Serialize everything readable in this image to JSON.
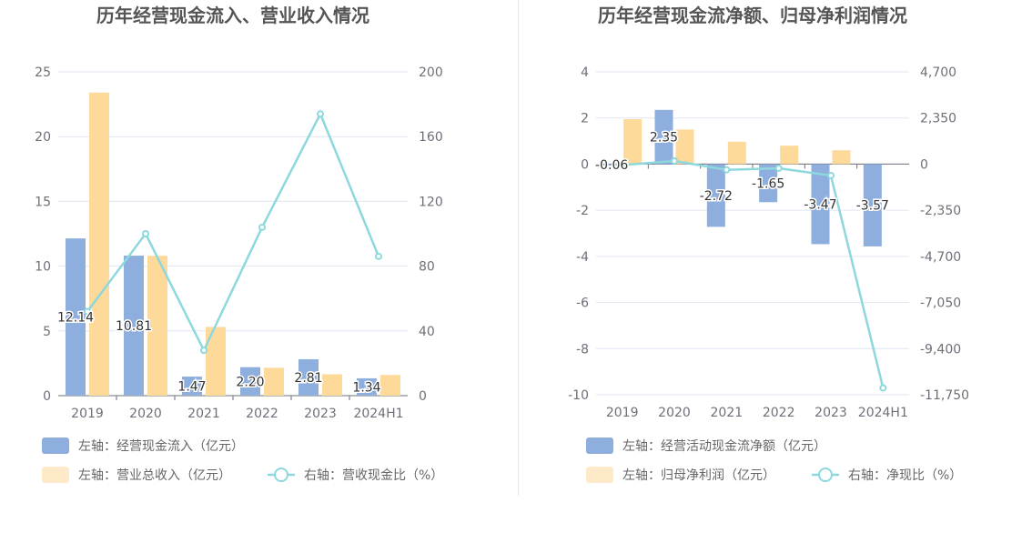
{
  "chart_data": [
    {
      "type": "bar",
      "title": "历年经营现金流入、营业收入情况",
      "categories": [
        "2019",
        "2020",
        "2021",
        "2022",
        "2023",
        "2024H1"
      ],
      "y_left": {
        "ylim": [
          0,
          25
        ],
        "ticks": [
          "0",
          "5",
          "10",
          "15",
          "20",
          "25"
        ]
      },
      "y_right": {
        "ylim": [
          0,
          200
        ],
        "ticks": [
          "0",
          "40",
          "80",
          "120",
          "160",
          "200"
        ]
      },
      "series": [
        {
          "name": "左轴：经营现金流入（亿元）",
          "type": "bar",
          "axis": "left",
          "color": "#8eaedd",
          "values": [
            12.14,
            10.81,
            1.47,
            2.2,
            2.81,
            1.34
          ],
          "labels": [
            "12.14",
            "10.81",
            "1.47",
            "2.20",
            "2.81",
            "1.34"
          ]
        },
        {
          "name": "左轴：营业总收入（亿元）",
          "type": "bar",
          "axis": "left",
          "color": "#fdd99a",
          "values": [
            23.4,
            10.8,
            5.3,
            2.15,
            1.65,
            1.6
          ]
        },
        {
          "name": "右轴：营收现金比（%）",
          "type": "line",
          "axis": "right",
          "color": "#8dd8dc",
          "values": [
            52,
            100,
            28,
            104,
            174,
            86
          ]
        }
      ],
      "grid": true,
      "legend_position": "bottom-left"
    },
    {
      "type": "bar",
      "title": "历年经营现金流净额、归母净利润情况",
      "categories": [
        "2019",
        "2020",
        "2021",
        "2022",
        "2023",
        "2024H1"
      ],
      "y_left": {
        "ylim": [
          -10,
          4
        ],
        "ticks": [
          "-10",
          "-8",
          "-6",
          "-4",
          "-2",
          "0",
          "2",
          "4"
        ]
      },
      "y_right": {
        "ylim": [
          -11750,
          4700
        ],
        "ticks": [
          "-11,750",
          "-9,400",
          "-7,050",
          "-4,700",
          "-2,350",
          "0",
          "2,350",
          "4,700"
        ]
      },
      "series": [
        {
          "name": "左轴：经营活动现金流净额（亿元）",
          "type": "bar",
          "axis": "left",
          "color": "#8eaedd",
          "values": [
            -0.06,
            2.35,
            -2.72,
            -1.65,
            -3.47,
            -3.57
          ],
          "labels": [
            "-0.06",
            "2.35",
            "-2.72",
            "-1.65",
            "-3.47",
            "-3.57"
          ]
        },
        {
          "name": "左轴：归母净利润（亿元）",
          "type": "bar",
          "axis": "left",
          "color": "#fdd99a",
          "values": [
            1.95,
            1.5,
            0.97,
            0.8,
            0.6,
            0.0
          ]
        },
        {
          "name": "右轴：净现比（%）",
          "type": "line",
          "axis": "right",
          "color": "#8dd8dc",
          "values": [
            -50,
            160,
            -290,
            -210,
            -580,
            -11400
          ]
        }
      ],
      "grid": true,
      "legend_position": "bottom-left"
    }
  ]
}
